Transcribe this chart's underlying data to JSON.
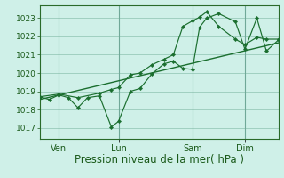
{
  "bg_color": "#cff0e8",
  "grid_color": "#a0cfc0",
  "line_color": "#1a6e2e",
  "xlabel": "Pression niveau de la mer( hPa )",
  "yticks": [
    1017,
    1018,
    1019,
    1020,
    1021,
    1022,
    1023
  ],
  "xtick_labels": [
    "Ven",
    "Lun",
    "Sam",
    "Dim"
  ],
  "xtick_positions": [
    0.08,
    0.33,
    0.64,
    0.86
  ],
  "xlim": [
    0,
    1.0
  ],
  "ylim": [
    1016.4,
    1023.7
  ],
  "series1_x": [
    0.0,
    0.04,
    0.08,
    0.12,
    0.16,
    0.2,
    0.25,
    0.3,
    0.33,
    0.38,
    0.42,
    0.47,
    0.52,
    0.56,
    0.6,
    0.64,
    0.67,
    0.7,
    0.75,
    0.82,
    0.86,
    0.91,
    0.95,
    1.0
  ],
  "series1_y": [
    1018.7,
    1018.55,
    1018.8,
    1018.65,
    1018.1,
    1018.65,
    1018.75,
    1017.05,
    1017.35,
    1019.0,
    1019.15,
    1019.95,
    1020.5,
    1020.65,
    1020.25,
    1020.2,
    1022.5,
    1023.0,
    1023.25,
    1022.8,
    1021.3,
    1023.0,
    1021.2,
    1021.8
  ],
  "series2_x": [
    0.0,
    0.08,
    0.16,
    0.25,
    0.3,
    0.33,
    0.38,
    0.42,
    0.47,
    0.52,
    0.56,
    0.6,
    0.64,
    0.67,
    0.7,
    0.75,
    0.82,
    0.86,
    0.91,
    0.95,
    1.0
  ],
  "series2_y": [
    1018.7,
    1018.85,
    1018.65,
    1018.9,
    1019.1,
    1019.2,
    1019.9,
    1020.0,
    1020.45,
    1020.75,
    1021.0,
    1022.55,
    1022.85,
    1023.05,
    1023.35,
    1022.55,
    1021.85,
    1021.55,
    1021.95,
    1021.85,
    1021.85
  ],
  "trend_x": [
    0.0,
    1.0
  ],
  "trend_y": [
    1018.55,
    1021.65
  ],
  "ylabel_fontsize": 6.5,
  "xlabel_fontsize": 8.5,
  "tick_label_color": "#1a5a1a"
}
